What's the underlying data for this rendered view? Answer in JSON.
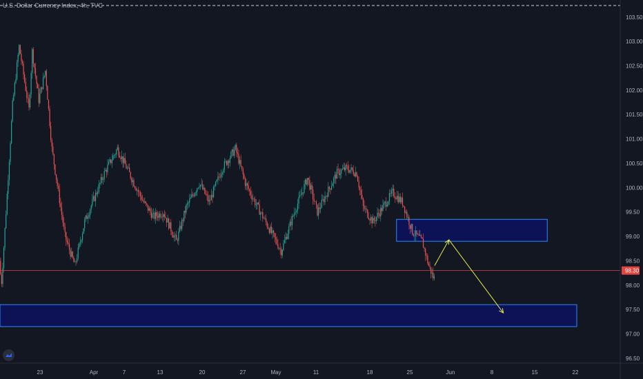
{
  "header": {
    "title": "U.S. Dollar Currency Index, 4h, TVC"
  },
  "colors": {
    "background": "#131722",
    "up": "#26a69a",
    "down": "#ef5350",
    "zone_fill": "#0d1257",
    "zone_border": "#2a8cff",
    "arrow": "#e6ec4b",
    "price_line": "#e0453f",
    "axis_text": "#b2b5be"
  },
  "chart_data": {
    "type": "candlestick",
    "title": "U.S. Dollar Currency Index, 4h, TVC",
    "x_ticks": [
      "23",
      "Apr",
      "7",
      "13",
      "20",
      "27",
      "May",
      "11",
      "18",
      "25",
      "Jun",
      "8",
      "15",
      "22"
    ],
    "y_ticks": [
      "103.50",
      "103.00",
      "102.50",
      "102.00",
      "101.50",
      "101.00",
      "100.50",
      "100.00",
      "99.50",
      "99.00",
      "98.50",
      "98.00",
      "97.50",
      "97.00",
      "96.50"
    ],
    "ylim": [
      96.4,
      103.85
    ],
    "current_price": {
      "value": 98.3,
      "label": "98.30"
    },
    "path": [
      [
        0,
        98.5
      ],
      [
        0.3,
        98.0
      ],
      [
        1.0,
        99.5
      ],
      [
        2.0,
        101.7
      ],
      [
        3.0,
        102.9
      ],
      [
        4.5,
        101.6
      ],
      [
        5.0,
        102.8
      ],
      [
        6.0,
        101.8
      ],
      [
        7.0,
        102.4
      ],
      [
        8.0,
        100.8
      ],
      [
        10.0,
        99.0
      ],
      [
        11.5,
        98.4
      ],
      [
        13.0,
        99.3
      ],
      [
        14.5,
        99.8
      ],
      [
        16.0,
        100.3
      ],
      [
        18.0,
        100.8
      ],
      [
        20.5,
        100.1
      ],
      [
        22.0,
        99.7
      ],
      [
        23.5,
        99.4
      ],
      [
        25.0,
        99.5
      ],
      [
        27.0,
        98.9
      ],
      [
        28.5,
        99.6
      ],
      [
        30.5,
        100.1
      ],
      [
        32.0,
        99.7
      ],
      [
        34.0,
        100.4
      ],
      [
        36.0,
        100.8
      ],
      [
        37.5,
        100.1
      ],
      [
        39.0,
        99.7
      ],
      [
        41.0,
        99.2
      ],
      [
        43.0,
        98.7
      ],
      [
        45.0,
        99.5
      ],
      [
        47.0,
        100.2
      ],
      [
        48.5,
        99.5
      ],
      [
        50.0,
        99.9
      ],
      [
        51.5,
        100.3
      ],
      [
        53.0,
        100.4
      ],
      [
        54.5,
        100.3
      ],
      [
        55.5,
        99.6
      ],
      [
        57.0,
        99.3
      ],
      [
        58.5,
        99.6
      ],
      [
        60.0,
        99.9
      ],
      [
        61.5,
        99.7
      ],
      [
        63.0,
        99.1
      ],
      [
        64.5,
        98.9
      ],
      [
        65.5,
        98.4
      ],
      [
        66.2,
        98.15
      ]
    ],
    "annotations": {
      "zones": [
        {
          "x_start": 60.5,
          "x_end": 83.5,
          "y_top": 99.35,
          "y_bottom": 98.9
        },
        {
          "x_start": -1,
          "x_end": 88,
          "y_top": 97.6,
          "y_bottom": 97.15
        }
      ],
      "arrows": [
        {
          "from": [
            66.3,
            98.4
          ],
          "to": [
            68.5,
            98.93
          ]
        },
        {
          "from": [
            68.5,
            98.93
          ],
          "to": [
            76.8,
            97.43
          ]
        }
      ]
    }
  }
}
